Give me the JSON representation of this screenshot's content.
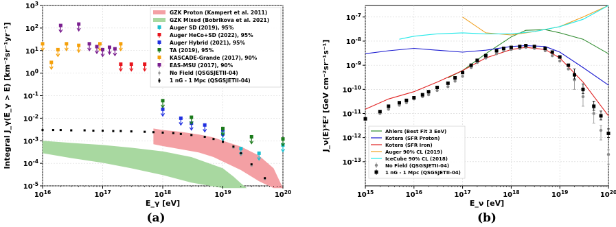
{
  "chart_data": [
    {
      "type": "scatter",
      "panel": "(a)",
      "title": "",
      "xlabel": "E_γ [eV]",
      "ylabel": "Integral J_γ(E_γ > E) [km⁻²sr⁻¹yr⁻¹]",
      "xscale": "log",
      "yscale": "log",
      "xlim": [
        1e+16,
        1e+20
      ],
      "ylim": [
        1e-05,
        1000.0
      ],
      "x_ticks": [
        "10^16",
        "10^17",
        "10^18",
        "10^19",
        "10^20"
      ],
      "y_ticks": [
        "10^-5",
        "10^-4",
        "10^-3",
        "10^-2",
        "10^-1",
        "10^0",
        "10^1",
        "10^2",
        "10^3"
      ],
      "grid": true,
      "legend_position": "top-right",
      "bands": [
        {
          "name": "GZK Proton (Kampert et al. 2011)",
          "color": "#f4a0a4",
          "x": [
            7e+17,
            1e+18,
            2e+18,
            4e+18,
            7e+18,
            1e+19,
            2e+19,
            4e+19,
            7e+19,
            1e+20
          ],
          "upper": [
            0.0035,
            0.003,
            0.0025,
            0.0019,
            0.0014,
            0.001,
            0.00055,
            0.00022,
            6e-05,
            8e-06
          ],
          "lower": [
            0.0007,
            0.00058,
            0.00042,
            0.0003,
            0.00019,
            0.00012,
            5e-05,
            1.6e-05,
            8e-06,
            8e-06
          ]
        },
        {
          "name": "GZK Mixed (Bobrikova et al. 2021)",
          "color": "#a8d8a0",
          "x": [
            1e+16,
            3e+16,
            1e+17,
            3e+17,
            1e+18,
            3e+18,
            1e+19,
            1.5e+19,
            2e+19,
            2.5e+19
          ],
          "upper": [
            0.001,
            0.0008,
            0.00065,
            0.00049,
            0.00034,
            0.00019,
            6e-05,
            2.6e-05,
            1.3e-05,
            8e-06
          ],
          "lower": [
            0.00028,
            0.00017,
            0.000105,
            6e-05,
            3e-05,
            1.4e-05,
            8e-06,
            8e-06,
            8e-06,
            8e-06
          ]
        }
      ],
      "series": [
        {
          "name": "Auger SD (2019), 95%",
          "color": "#17becf",
          "x": [
            1e+19,
            2e+19,
            4e+19,
            1e+20
          ],
          "y": [
            0.002,
            0.00045,
            0.00028,
            0.00065
          ]
        },
        {
          "name": "Auger HeCo+SD (2022), 95%",
          "color": "#e8141c",
          "x": [
            2e+17,
            3e+17,
            5e+17,
            1e+18
          ],
          "y": [
            2.5,
            2.5,
            2.5,
            3.5
          ]
        },
        {
          "name": "Auger Hybrid (2021), 95%",
          "color": "#1f2fe0",
          "x": [
            1e+18,
            2e+18,
            3e+18,
            5e+18,
            1e+19
          ],
          "y": [
            0.025,
            0.01,
            0.006,
            0.005,
            0.003
          ]
        },
        {
          "name": "TA (2019), 95%",
          "color": "#1a7a1a",
          "x": [
            1e+18,
            3e+18,
            1e+19,
            3e+19,
            1e+20
          ],
          "y": [
            0.06,
            0.011,
            0.0035,
            0.0015,
            0.0012
          ]
        },
        {
          "name": "KASCADE-Grande (2017), 90%",
          "color": "#f5a00a",
          "x": [
            1e+16,
            1.4e+16,
            1.8e+16,
            2.5e+16,
            4e+16,
            9e+16,
            2e+17
          ],
          "y": [
            20,
            3,
            11,
            20,
            17,
            20,
            20
          ]
        },
        {
          "name": "EAS-MSU (2017), 90%",
          "color": "#7a1f8f",
          "x": [
            2e+16,
            4e+16,
            6e+16,
            8e+16,
            1e+17,
            1.3e+17,
            1.6e+17
          ],
          "y": [
            130,
            150,
            20,
            15,
            11,
            14,
            12
          ]
        },
        {
          "name": "No Field (QSGSJETII-04)",
          "color": "#9a9a9a",
          "x": [
            1e+16,
            1.5e+16,
            2e+16,
            3e+16,
            5e+16,
            7e+16,
            1e+17,
            1.5e+17,
            2e+17,
            3e+17,
            5e+17,
            7e+17,
            1e+18,
            1.5e+18,
            2e+18,
            3e+18,
            5e+18,
            7e+18,
            1e+19,
            1.5e+19,
            2e+19,
            3e+19,
            5e+19
          ],
          "y": [
            0.003,
            0.003,
            0.003,
            0.0029,
            0.0029,
            0.0028,
            0.0028,
            0.0027,
            0.0027,
            0.0026,
            0.0025,
            0.0024,
            0.0023,
            0.0022,
            0.002,
            0.0018,
            0.0015,
            0.0012,
            0.0009,
            0.0005,
            0.00025,
            8e-05,
            2e-05
          ]
        },
        {
          "name": "1 nG - 1 Mpc (QSGSJETII-04)",
          "color": "#000000",
          "x": [
            1e+16,
            1.5e+16,
            2e+16,
            3e+16,
            5e+16,
            7e+16,
            1e+17,
            1.5e+17,
            2e+17,
            3e+17,
            5e+17,
            7e+17,
            1e+18,
            1.5e+18,
            2e+18,
            3e+18,
            5e+18,
            7e+18,
            1e+19,
            1.5e+19,
            2e+19,
            3e+19,
            5e+19
          ],
          "y": [
            0.003,
            0.003,
            0.003,
            0.0029,
            0.0029,
            0.0028,
            0.0028,
            0.0027,
            0.0027,
            0.0026,
            0.0025,
            0.0024,
            0.0023,
            0.0022,
            0.002,
            0.0018,
            0.0015,
            0.0012,
            0.0009,
            0.00055,
            0.00028,
            9e-05,
            2.2e-05
          ]
        }
      ]
    },
    {
      "type": "line",
      "panel": "(b)",
      "title": "",
      "xlabel": "E_ν [eV]",
      "ylabel": "J_ν(E)*E² [GeV cm⁻²sr⁻¹s⁻¹]",
      "xscale": "log",
      "yscale": "log",
      "xlim": [
        1000000000000000.0,
        1e+20
      ],
      "ylim": [
        1e-14,
        3e-07
      ],
      "x_ticks": [
        "10^15",
        "10^16",
        "10^17",
        "10^18",
        "10^19",
        "10^20"
      ],
      "y_ticks": [
        "10^-13",
        "10^-12",
        "10^-11",
        "10^-10",
        "10^-9",
        "10^-8",
        "10^-7"
      ],
      "grid": true,
      "legend_position": "bottom-left",
      "series": [
        {
          "name": "Ahlers (Best Fit 3 EeV)",
          "color": "#2e8b2e",
          "x": [
            5e+16,
            1e+17,
            3e+17,
            1e+18,
            2e+18,
            5e+18,
            1e+19,
            3e+19,
            1e+20
          ],
          "y": [
            3e-10,
            6e-10,
            3e-09,
            1.5e-08,
            2.8e-08,
            3e-08,
            2.2e-08,
            1.2e-08,
            3e-09
          ]
        },
        {
          "name": "Kotera (SFR Proton)",
          "color": "#1a1ad0",
          "x": [
            1000000000000000.0,
            3000000000000000.0,
            1e+16,
            3e+16,
            1e+17,
            3e+17,
            1e+18,
            2e+18,
            5e+18,
            1e+19,
            3e+19,
            1e+20
          ],
          "y": [
            3e-09,
            4e-09,
            5e-09,
            4.2e-09,
            3.5e-09,
            4.2e-09,
            6e-09,
            6.5e-09,
            6e-09,
            3.5e-09,
            8e-10,
            1.5e-10
          ]
        },
        {
          "name": "Kotera (SFR Iron)",
          "color": "#e02020",
          "x": [
            1000000000000000.0,
            3000000000000000.0,
            1e+16,
            3e+16,
            1e+17,
            3e+17,
            1e+18,
            2e+18,
            5e+18,
            1e+19,
            3e+19,
            1e+20
          ],
          "y": [
            1.5e-11,
            4e-11,
            8e-11,
            2e-10,
            6e-10,
            2e-09,
            4.5e-09,
            5.5e-09,
            4.5e-09,
            2e-09,
            2e-10,
            8e-12
          ]
        },
        {
          "name": "Auger 90% CL (2019)",
          "color": "#f0a020",
          "x": [
            1e+17,
            3e+17,
            1e+18,
            3e+18,
            1e+19,
            3e+19,
            1e+20
          ],
          "y": [
            1e-07,
            2.2e-08,
            1.8e-08,
            2.5e-08,
            4e-08,
            1e-07,
            3e-07
          ]
        },
        {
          "name": "IceCube 90% CL (2018)",
          "color": "#20e8e8",
          "x": [
            5000000000000000.0,
            1e+16,
            3e+16,
            1e+17,
            3e+17,
            1e+18,
            3e+18,
            1e+19,
            3e+19,
            1e+20
          ],
          "y": [
            1.2e-08,
            1.6e-08,
            2e-08,
            2.2e-08,
            2e-08,
            2e-08,
            2.5e-08,
            4e-08,
            8e-08,
            3e-07
          ]
        },
        {
          "name": "No Field (QSGSJETII-04)",
          "color": "#8a8a8a",
          "x": [
            1000000000000000.0,
            2000000000000000.0,
            3000000000000000.0,
            5000000000000000.0,
            7000000000000000.0,
            1e+16,
            1.5e+16,
            2e+16,
            3e+16,
            5e+16,
            7e+16,
            1e+17,
            1.5e+17,
            2e+17,
            3e+17,
            5e+17,
            7e+17,
            1e+18,
            1.5e+18,
            2e+18,
            3e+18,
            5e+18,
            7e+18,
            1e+19,
            1.5e+19,
            2e+19,
            3e+19,
            5e+19,
            7e+19,
            1e+20
          ],
          "y": [
            6e-12,
            1e-11,
            1.5e-11,
            2.2e-11,
            2.8e-11,
            4e-11,
            5e-11,
            6e-11,
            9e-11,
            1.3e-10,
            2.2e-10,
            3.5e-10,
            8e-10,
            1.3e-09,
            2e-09,
            3e-09,
            4e-09,
            4.5e-09,
            5e-09,
            5.5e-09,
            5e-09,
            4e-09,
            2.5e-09,
            1.5e-09,
            7e-10,
            2.5e-10,
            5e-11,
            1e-11,
            2e-12,
            2e-13
          ]
        },
        {
          "name": "1 nG - 1 Mpc (QSGSJETII-04)",
          "color": "#000000",
          "x": [
            1000000000000000.0,
            2000000000000000.0,
            3000000000000000.0,
            5000000000000000.0,
            7000000000000000.0,
            1e+16,
            1.5e+16,
            2e+16,
            3e+16,
            5e+16,
            7e+16,
            1e+17,
            1.5e+17,
            2e+17,
            3e+17,
            5e+17,
            7e+17,
            1e+18,
            1.5e+18,
            2e+18,
            3e+18,
            5e+18,
            7e+18,
            1e+19,
            1.5e+19,
            2e+19,
            3e+19,
            5e+19,
            7e+19,
            1e+20
          ],
          "y": [
            6e-12,
            1.2e-11,
            2e-11,
            2.8e-11,
            3.5e-11,
            4.5e-11,
            6e-11,
            8e-11,
            1.2e-10,
            1.8e-10,
            3e-10,
            5e-10,
            1e-09,
            1.6e-09,
            2.5e-09,
            4e-09,
            5e-09,
            5.5e-09,
            6e-09,
            6.5e-09,
            6e-09,
            5e-09,
            3.5e-09,
            2.2e-09,
            1e-09,
            4e-10,
            1e-10,
            2e-11,
            8e-12,
            1.5e-12
          ]
        }
      ]
    }
  ]
}
